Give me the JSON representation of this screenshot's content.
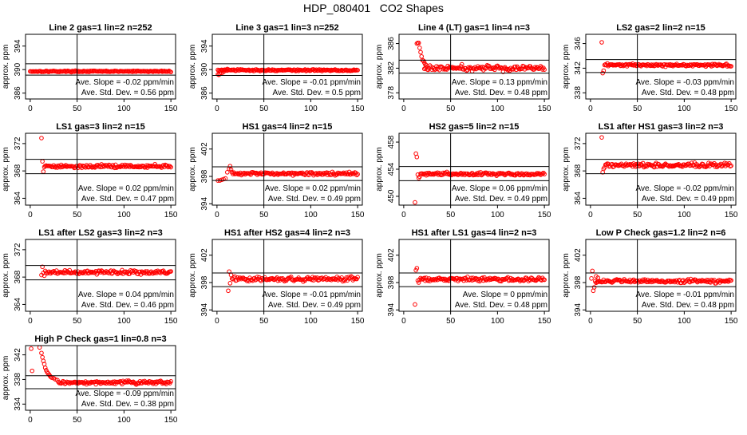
{
  "figure": {
    "title": "HDP_080401   CO2 Shapes"
  },
  "style": {
    "point_color": "#ff0000",
    "line_color": "#000000"
  },
  "chart_data": [
    {
      "type": "scatter",
      "title": "Line 2 gas=1 lin=2 n=252",
      "ylabel": "approx. ppm",
      "xlim": [
        -5,
        155
      ],
      "ylim": [
        385,
        396
      ],
      "xticks": [
        0,
        50,
        100,
        150
      ],
      "yticks": [
        386,
        390,
        394
      ],
      "vline": 50,
      "hlines": [
        389.05,
        391.0
      ],
      "stats": {
        "slope_label": "Ave. Slope =",
        "slope": "-0.02",
        "slope_unit": "ppm/min",
        "sd_label": "Ave. Std. Dev. =",
        "sd": "0.56",
        "sd_unit": "ppm"
      },
      "shape": {
        "start": 0,
        "end": 150,
        "level": 389.7,
        "noise": 0.05,
        "step": 1.0,
        "spikes": []
      }
    },
    {
      "type": "scatter",
      "title": "Line 3 gas=1 lin=3 n=252",
      "ylabel": "approx. ppm",
      "xlim": [
        -5,
        155
      ],
      "ylim": [
        385,
        396
      ],
      "xticks": [
        0,
        50,
        100,
        150
      ],
      "yticks": [
        386,
        390,
        394
      ],
      "vline": 50,
      "hlines": [
        389.0,
        391.0
      ],
      "stats": {
        "slope_label": "Ave. Slope =",
        "slope": "-0.01",
        "slope_unit": "ppm/min",
        "sd_label": "Ave. Std. Dev. =",
        "sd": "0.5",
        "sd_unit": "ppm"
      },
      "shape": {
        "start": 1,
        "end": 150,
        "level": 389.9,
        "noise": 0.07,
        "step": 1.0,
        "spikes": [
          [
            1,
            389.2
          ],
          [
            2,
            389.1
          ],
          [
            3,
            389.3
          ],
          [
            5,
            389.4
          ],
          [
            7,
            389.6
          ],
          [
            9,
            389.9
          ],
          [
            11,
            390.1
          ]
        ]
      }
    },
    {
      "type": "scatter",
      "title": "Line 4 (LT) gas=1 lin=4 n=3",
      "ylabel": "approx. ppm",
      "xlim": [
        -5,
        155
      ],
      "ylim": [
        377,
        387.5
      ],
      "xticks": [
        0,
        50,
        100,
        150
      ],
      "yticks": [
        378,
        382,
        386
      ],
      "vline": 50,
      "hlines": [
        381.2,
        383.3
      ],
      "stats": {
        "slope_label": "Ave. Slope =",
        "slope": "0.13",
        "slope_unit": "ppm/min",
        "sd_label": "Ave. Std. Dev. =",
        "sd": "0.48",
        "sd_unit": "ppm"
      },
      "shape": {
        "start": 22,
        "end": 150,
        "level": 382.0,
        "noise": 0.22,
        "step": 1.0,
        "spikes": [
          [
            14,
            386.0
          ],
          [
            15,
            386.1
          ],
          [
            16,
            386.1
          ],
          [
            17,
            385.3
          ],
          [
            18,
            384.6
          ],
          [
            19,
            383.9
          ],
          [
            20,
            383.3
          ],
          [
            21,
            383.2
          ],
          [
            22,
            382.9
          ],
          [
            23,
            382.6
          ],
          [
            24,
            382.5
          ]
        ]
      }
    },
    {
      "type": "scatter",
      "title": "LS2 gas=2 lin=2 n=15",
      "ylabel": "approx. ppm",
      "xlim": [
        -5,
        155
      ],
      "ylim": [
        337,
        347.5
      ],
      "xticks": [
        0,
        50,
        100,
        150
      ],
      "yticks": [
        338,
        342,
        346
      ],
      "vline": 50,
      "hlines": [
        341.3,
        343.4
      ],
      "stats": {
        "slope_label": "Ave. Slope =",
        "slope": "-0.03",
        "slope_unit": "ppm/min",
        "sd_label": "Ave. Std. Dev. =",
        "sd": "0.48",
        "sd_unit": "ppm"
      },
      "shape": {
        "start": 15,
        "end": 150,
        "level": 342.5,
        "noise": 0.1,
        "step": 1.0,
        "spikes": [
          [
            12,
            346.2
          ],
          [
            13,
            341.2
          ],
          [
            14,
            341.6
          ]
        ]
      }
    },
    {
      "type": "scatter",
      "title": "LS1 gas=3 lin=2 n=15",
      "ylabel": "approx. ppm",
      "xlim": [
        -5,
        155
      ],
      "ylim": [
        363,
        373.5
      ],
      "xticks": [
        0,
        50,
        100,
        150
      ],
      "yticks": [
        364,
        368,
        372
      ],
      "vline": 50,
      "hlines": [
        367.6,
        369.7
      ],
      "stats": {
        "slope_label": "Ave. Slope =",
        "slope": "0.02",
        "slope_unit": "ppm/min",
        "sd_label": "Ave. Std. Dev. =",
        "sd": "0.47",
        "sd_unit": "ppm"
      },
      "shape": {
        "start": 15,
        "end": 150,
        "level": 368.7,
        "noise": 0.12,
        "step": 1.0,
        "spikes": [
          [
            12,
            372.8
          ],
          [
            13,
            369.4
          ],
          [
            14,
            367.9
          ]
        ]
      }
    },
    {
      "type": "scatter",
      "title": "HS1 gas=4 lin=2 n=15",
      "ylabel": "approx. ppm",
      "xlim": [
        -5,
        155
      ],
      "ylim": [
        393.8,
        404.3
      ],
      "xticks": [
        0,
        50,
        100,
        150
      ],
      "yticks": [
        394,
        398,
        402
      ],
      "vline": 50,
      "hlines": [
        397.4,
        399.4
      ],
      "stats": {
        "slope_label": "Ave. Slope =",
        "slope": "0.02",
        "slope_unit": "ppm/min",
        "sd_label": "Ave. Std. Dev. =",
        "sd": "0.49",
        "sd_unit": "ppm"
      },
      "shape": {
        "start": 17,
        "end": 150,
        "level": 398.4,
        "noise": 0.12,
        "step": 1.0,
        "spikes": [
          [
            1,
            397.4
          ],
          [
            3,
            397.4
          ],
          [
            5,
            397.5
          ],
          [
            7,
            397.6
          ],
          [
            9,
            397.7
          ],
          [
            11,
            398.6
          ],
          [
            13,
            399.1
          ],
          [
            14,
            399.5
          ],
          [
            15,
            399.0
          ],
          [
            16,
            398.6
          ]
        ]
      }
    },
    {
      "type": "scatter",
      "title": "HS2 gas=5 lin=2 n=15",
      "ylabel": "approx. ppm",
      "xlim": [
        -5,
        155
      ],
      "ylim": [
        448.7,
        459.3
      ],
      "xticks": [
        0,
        50,
        100,
        150
      ],
      "yticks": [
        450,
        454,
        458
      ],
      "vline": 50,
      "hlines": [
        452.3,
        454.4
      ],
      "stats": {
        "slope_label": "Ave. Slope =",
        "slope": "0.06",
        "slope_unit": "ppm/min",
        "sd_label": "Ave. Std. Dev. =",
        "sd": "0.49",
        "sd_unit": "ppm"
      },
      "shape": {
        "start": 18,
        "end": 150,
        "level": 453.3,
        "noise": 0.11,
        "step": 1.0,
        "spikes": [
          [
            12,
            449.1
          ],
          [
            13,
            456.3
          ],
          [
            14,
            455.8
          ],
          [
            15,
            453.2
          ],
          [
            16,
            452.7
          ],
          [
            17,
            452.9
          ]
        ]
      }
    },
    {
      "type": "scatter",
      "title": "LS1 after HS1 gas=3 lin=2 n=3",
      "ylabel": "approx. ppm",
      "xlim": [
        -5,
        155
      ],
      "ylim": [
        363,
        373.5
      ],
      "xticks": [
        0,
        50,
        100,
        150
      ],
      "yticks": [
        364,
        368,
        372
      ],
      "vline": 50,
      "hlines": [
        367.6,
        369.7
      ],
      "stats": {
        "slope_label": "Ave. Slope =",
        "slope": "-0.02",
        "slope_unit": "ppm/min",
        "sd_label": "Ave. Std. Dev. =",
        "sd": "0.49",
        "sd_unit": "ppm"
      },
      "shape": {
        "start": 17,
        "end": 150,
        "level": 368.8,
        "noise": 0.16,
        "step": 1.0,
        "spikes": [
          [
            12,
            372.9
          ],
          [
            13,
            367.8
          ],
          [
            14,
            368.3
          ],
          [
            15,
            368.5
          ],
          [
            16,
            368.9
          ]
        ]
      }
    },
    {
      "type": "scatter",
      "title": "LS1 after LS2 gas=3 lin=2 n=3",
      "ylabel": "approx. ppm",
      "xlim": [
        -5,
        155
      ],
      "ylim": [
        363,
        373.5
      ],
      "xticks": [
        0,
        50,
        100,
        150
      ],
      "yticks": [
        364,
        368,
        372
      ],
      "vline": 50,
      "hlines": [
        367.6,
        369.7
      ],
      "stats": {
        "slope_label": "Ave. Slope =",
        "slope": "0.04",
        "slope_unit": "ppm/min",
        "sd_label": "Ave. Std. Dev. =",
        "sd": "0.46",
        "sd_unit": "ppm"
      },
      "shape": {
        "start": 17,
        "end": 150,
        "level": 368.7,
        "noise": 0.14,
        "step": 1.0,
        "spikes": [
          [
            12,
            368.3
          ],
          [
            13,
            369.5
          ],
          [
            14,
            368.6
          ],
          [
            15,
            368.2
          ],
          [
            16,
            368.9
          ]
        ]
      }
    },
    {
      "type": "scatter",
      "title": "HS1 after HS2 gas=4 lin=2 n=3",
      "ylabel": "approx. ppm",
      "xlim": [
        -5,
        155
      ],
      "ylim": [
        393.8,
        404.3
      ],
      "xticks": [
        0,
        50,
        100,
        150
      ],
      "yticks": [
        394,
        398,
        402
      ],
      "vline": 50,
      "hlines": [
        397.4,
        399.4
      ],
      "stats": {
        "slope_label": "Ave. Slope =",
        "slope": "-0.01",
        "slope_unit": "ppm/min",
        "sd_label": "Ave. Std. Dev. =",
        "sd": "0.49",
        "sd_unit": "ppm"
      },
      "shape": {
        "start": 16,
        "end": 150,
        "level": 398.5,
        "noise": 0.17,
        "step": 1.0,
        "spikes": [
          [
            12,
            396.8
          ],
          [
            13,
            399.6
          ],
          [
            14,
            397.9
          ],
          [
            15,
            399.1
          ]
        ]
      }
    },
    {
      "type": "scatter",
      "title": "HS1 after LS1 gas=4 lin=2 n=3",
      "ylabel": "approx. ppm",
      "xlim": [
        -5,
        155
      ],
      "ylim": [
        393.8,
        404.3
      ],
      "xticks": [
        0,
        50,
        100,
        150
      ],
      "yticks": [
        394,
        398,
        402
      ],
      "vline": 50,
      "hlines": [
        397.4,
        399.4
      ],
      "stats": {
        "slope_label": "Ave. Slope =",
        "slope": "0",
        "slope_unit": "ppm/min",
        "sd_label": "Ave. Std. Dev. =",
        "sd": "0.48",
        "sd_unit": "ppm"
      },
      "shape": {
        "start": 17,
        "end": 150,
        "level": 398.5,
        "noise": 0.14,
        "step": 1.0,
        "spikes": [
          [
            12,
            394.8
          ],
          [
            13,
            399.8
          ],
          [
            14,
            400.1
          ],
          [
            15,
            398.3
          ],
          [
            16,
            398.0
          ]
        ]
      }
    },
    {
      "type": "scatter",
      "title": "Low P Check gas=1.2 lin=2 n=6",
      "ylabel": "approx. ppm",
      "xlim": [
        -5,
        155
      ],
      "ylim": [
        393.8,
        404.3
      ],
      "xticks": [
        0,
        50,
        100,
        150
      ],
      "yticks": [
        394,
        398,
        402
      ],
      "vline": 50,
      "hlines": [
        397.4,
        399.4
      ],
      "stats": {
        "slope_label": "Ave. Slope =",
        "slope": "-0.01",
        "slope_unit": "ppm/min",
        "sd_label": "Ave. Std. Dev. =",
        "sd": "0.48",
        "sd_unit": "ppm"
      },
      "shape": {
        "start": 5,
        "end": 150,
        "level": 398.2,
        "noise": 0.13,
        "step": 1.0,
        "spikes": [
          [
            1,
            398.6
          ],
          [
            2,
            399.7
          ],
          [
            3,
            396.8
          ],
          [
            4,
            397.3
          ],
          [
            6,
            398.9
          ],
          [
            8,
            398.7
          ]
        ]
      }
    },
    {
      "type": "scatter",
      "title": "High P Check gas=1 lin=0.8 n=3",
      "ylabel": "approx. ppm",
      "xlim": [
        -5,
        155
      ],
      "ylim": [
        333,
        343.5
      ],
      "xticks": [
        0,
        50,
        100,
        150
      ],
      "yticks": [
        334,
        338,
        342
      ],
      "vline": 50,
      "hlines": [
        336.5,
        338.6
      ],
      "stats": {
        "slope_label": "Ave. Slope =",
        "slope": "-0.09",
        "slope_unit": "ppm/min",
        "sd_label": "Ave. Std. Dev. =",
        "sd": "0.38",
        "sd_unit": "ppm"
      },
      "shape": {
        "start": 30,
        "end": 150,
        "level": 337.5,
        "noise": 0.14,
        "step": 1.0,
        "spikes": [
          [
            1,
            343.0
          ],
          [
            2,
            339.4
          ],
          [
            10,
            343.2
          ],
          [
            12,
            342.3
          ],
          [
            13,
            341.6
          ],
          [
            14,
            341.0
          ],
          [
            15,
            340.5
          ],
          [
            16,
            339.9
          ],
          [
            17,
            339.5
          ],
          [
            18,
            339.2
          ],
          [
            19,
            339.0
          ],
          [
            20,
            338.8
          ],
          [
            21,
            338.6
          ],
          [
            22,
            338.4
          ],
          [
            23,
            338.3
          ],
          [
            25,
            338.2
          ],
          [
            27,
            338.0
          ],
          [
            29,
            337.9
          ]
        ]
      }
    }
  ]
}
